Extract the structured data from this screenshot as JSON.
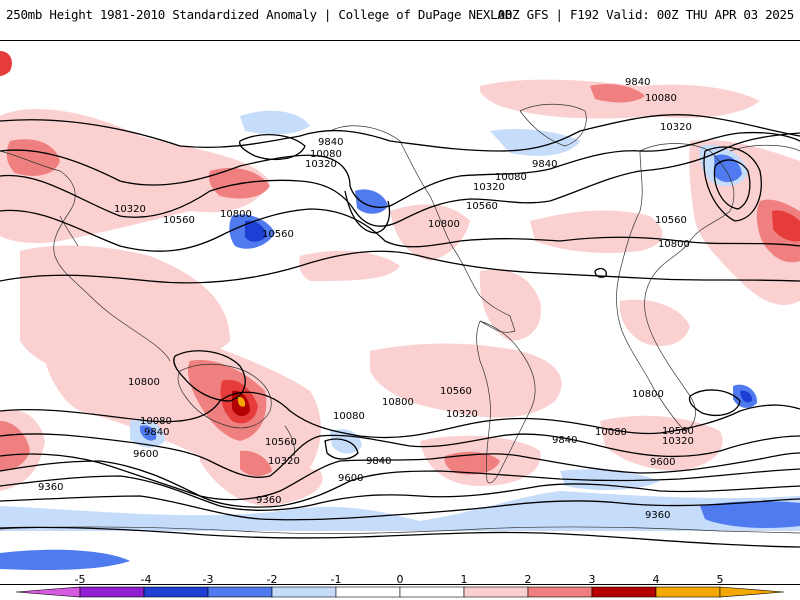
{
  "header": {
    "title": "250mb Height 1981-2010 Standardized Anomaly | College of DuPage NEXLAB",
    "run_info": "00Z GFS | F192 Valid: 00Z THU APR 03 2025"
  },
  "colors": {
    "neg5": "#d55be0",
    "neg4": "#8f1fd0",
    "neg3": "#1e3fd3",
    "neg2": "#4f7af0",
    "neg1": "#c6dcfb",
    "pos1": "#fbd0d0",
    "pos2": "#f08080",
    "pos3": "#e53b3b",
    "pos4": "#b40000",
    "pos5": "#f5a800",
    "contour": "#000000"
  },
  "colorbar": {
    "ticks": [
      "-5",
      "-4",
      "-3",
      "-2",
      "-1",
      "0",
      "1",
      "2",
      "3",
      "4",
      "5"
    ]
  },
  "contour_labels": {
    "l9840a": "9840",
    "l10080a": "10080",
    "l10320a": "10320",
    "l9840b": "9840",
    "l10080b": "10080",
    "l10320b": "10320",
    "l10560a": "10560",
    "l10320c": "10320",
    "l10560b": "10560",
    "l10800a": "10800",
    "l10560c": "10560",
    "l10800b": "10800",
    "l10560d": "10560",
    "l10800c": "10800",
    "l10800d": "10800",
    "l10800e": "10800",
    "l10560e": "10560",
    "l10320d": "10320",
    "l10080c": "10080",
    "l9840c": "9840",
    "l9600a": "9600",
    "l10080d": "10080",
    "l10560f": "10560",
    "l10320e": "10320",
    "l9840d": "9840",
    "l9600b": "9600",
    "l10800f": "10800",
    "l10560g": "10560",
    "l10320f": "10320",
    "l10080e": "10080",
    "l9840e": "9840",
    "l9600c": "9600",
    "l9360a": "9360",
    "l9360b": "9360",
    "l9360c": "9360"
  }
}
